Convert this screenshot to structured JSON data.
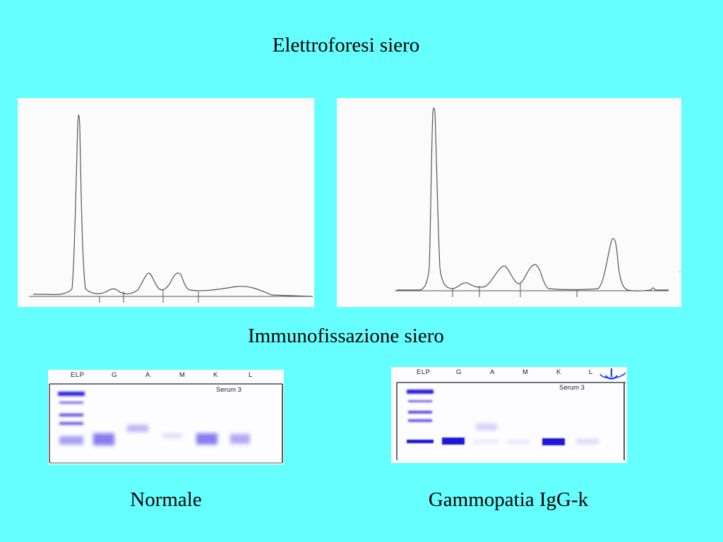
{
  "titles": {
    "electrophoresis": "Elettroforesi siero",
    "immunofixation": "Immunofissazione siero"
  },
  "labels": {
    "normal": "Normale",
    "gammopathy": "Gammopatia IgG-k"
  },
  "gel": {
    "lanes": [
      "ELP",
      "G",
      "A",
      "M",
      "K",
      "L"
    ],
    "serum_label": "Serum 3"
  },
  "icons": {
    "gel_marker": "down-arrow-icon"
  },
  "colors": {
    "background": "#66ffff",
    "band": "#3a2ee0",
    "trace": "#555555"
  }
}
